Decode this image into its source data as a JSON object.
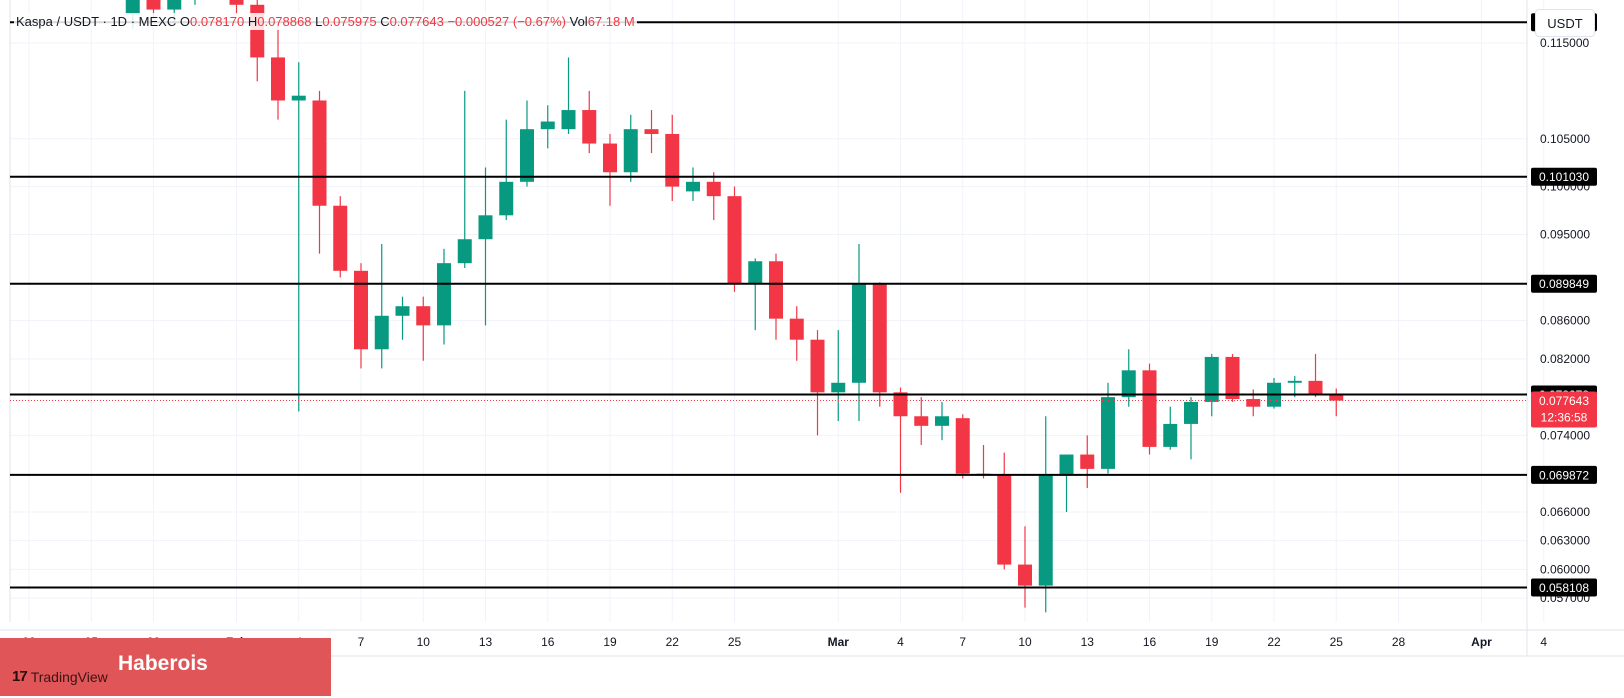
{
  "header": {
    "symbol": "Kaspa / USDT",
    "sep1": "·",
    "interval": "1D",
    "sep2": "·",
    "exchange": "MEXC",
    "o_label": "O",
    "o_value": "0.078170",
    "h_label": "H",
    "h_value": "0.078868",
    "l_label": "L",
    "l_value": "0.075975",
    "c_label": "C",
    "c_value": "0.077643",
    "change": "−0.000527 (−0.67%)",
    "vol_label": "Vol",
    "vol_value": "67.18 M"
  },
  "currency_button": "USDT",
  "branding": {
    "watermark": "Haberois",
    "tradingview": "TradingView"
  },
  "colors": {
    "up": "#089981",
    "down": "#f23645",
    "level_line": "#000000",
    "grid": "#f0f3fa",
    "axis_text": "#131722"
  },
  "chart_data": {
    "type": "candlestick",
    "title": "Kaspa / USDT · 1D · MEXC",
    "ylim": [
      0.0545,
      0.1195
    ],
    "y_ticks": [
      "0.115000",
      "0.105000",
      "0.100000",
      "0.095000",
      "0.086000",
      "0.082000",
      "0.074000",
      "0.066000",
      "0.063000",
      "0.060000",
      "0.057000"
    ],
    "x_ticks": [
      {
        "label": "22",
        "date": "2024-01-22"
      },
      {
        "label": "25",
        "date": "2024-01-25"
      },
      {
        "label": "28",
        "date": "2024-01-28"
      },
      {
        "label": "Feb",
        "date": "2024-02-01"
      },
      {
        "label": "4",
        "date": "2024-02-04"
      },
      {
        "label": "7",
        "date": "2024-02-07"
      },
      {
        "label": "10",
        "date": "2024-02-10"
      },
      {
        "label": "13",
        "date": "2024-02-13"
      },
      {
        "label": "16",
        "date": "2024-02-16"
      },
      {
        "label": "19",
        "date": "2024-02-19"
      },
      {
        "label": "22",
        "date": "2024-02-22"
      },
      {
        "label": "25",
        "date": "2024-02-25"
      },
      {
        "label": "Mar",
        "date": "2024-03-01"
      },
      {
        "label": "4",
        "date": "2024-03-04"
      },
      {
        "label": "7",
        "date": "2024-03-07"
      },
      {
        "label": "10",
        "date": "2024-03-10"
      },
      {
        "label": "13",
        "date": "2024-03-13"
      },
      {
        "label": "16",
        "date": "2024-03-16"
      },
      {
        "label": "19",
        "date": "2024-03-19"
      },
      {
        "label": "22",
        "date": "2024-03-22"
      },
      {
        "label": "25",
        "date": "2024-03-25"
      },
      {
        "label": "28",
        "date": "2024-03-28"
      },
      {
        "label": "Apr",
        "date": "2024-04-01"
      },
      {
        "label": "4",
        "date": "2024-04-04"
      }
    ],
    "levels": [
      {
        "label": "0.117180",
        "value": 0.11718
      },
      {
        "label": "0.101030",
        "value": 0.10103
      },
      {
        "label": "0.089849",
        "value": 0.089849
      },
      {
        "label": "0.078278",
        "value": 0.078278
      },
      {
        "label": "0.069872",
        "value": 0.069872
      },
      {
        "label": "0.058108",
        "value": 0.058108
      }
    ],
    "last_price": {
      "label": "0.077643",
      "value": 0.077643,
      "countdown": "12:36:58"
    },
    "candles": [
      {
        "date": "2024-01-27",
        "o": 0.118,
        "h": 0.122,
        "l": 0.1165,
        "c": 0.1195
      },
      {
        "date": "2024-01-28",
        "o": 0.121,
        "h": 0.123,
        "l": 0.1175,
        "c": 0.1185
      },
      {
        "date": "2024-01-29",
        "o": 0.1185,
        "h": 0.121,
        "l": 0.117,
        "c": 0.1195
      },
      {
        "date": "2024-01-30",
        "o": 0.1195,
        "h": 0.124,
        "l": 0.119,
        "c": 0.123
      },
      {
        "date": "2024-02-01",
        "o": 0.123,
        "h": 0.125,
        "l": 0.118,
        "c": 0.119
      },
      {
        "date": "2024-02-02",
        "o": 0.119,
        "h": 0.1225,
        "l": 0.111,
        "c": 0.1135
      },
      {
        "date": "2024-02-03",
        "o": 0.1135,
        "h": 0.117,
        "l": 0.107,
        "c": 0.109
      },
      {
        "date": "2024-02-04",
        "o": 0.109,
        "h": 0.113,
        "l": 0.0765,
        "c": 0.1095
      },
      {
        "date": "2024-02-05",
        "o": 0.109,
        "h": 0.11,
        "l": 0.093,
        "c": 0.098
      },
      {
        "date": "2024-02-06",
        "o": 0.098,
        "h": 0.099,
        "l": 0.0905,
        "c": 0.0912
      },
      {
        "date": "2024-02-07",
        "o": 0.0912,
        "h": 0.092,
        "l": 0.081,
        "c": 0.083
      },
      {
        "date": "2024-02-08",
        "o": 0.083,
        "h": 0.094,
        "l": 0.081,
        "c": 0.0865
      },
      {
        "date": "2024-02-09",
        "o": 0.0865,
        "h": 0.0885,
        "l": 0.084,
        "c": 0.0875
      },
      {
        "date": "2024-02-10",
        "o": 0.0875,
        "h": 0.0885,
        "l": 0.0818,
        "c": 0.0855
      },
      {
        "date": "2024-02-11",
        "o": 0.0855,
        "h": 0.0935,
        "l": 0.0835,
        "c": 0.092
      },
      {
        "date": "2024-02-12",
        "o": 0.092,
        "h": 0.11,
        "l": 0.0915,
        "c": 0.0945
      },
      {
        "date": "2024-02-13",
        "o": 0.0945,
        "h": 0.102,
        "l": 0.0855,
        "c": 0.097
      },
      {
        "date": "2024-02-14",
        "o": 0.097,
        "h": 0.107,
        "l": 0.0965,
        "c": 0.1005
      },
      {
        "date": "2024-02-15",
        "o": 0.1005,
        "h": 0.109,
        "l": 0.1,
        "c": 0.106
      },
      {
        "date": "2024-02-16",
        "o": 0.106,
        "h": 0.1085,
        "l": 0.104,
        "c": 0.1068
      },
      {
        "date": "2024-02-17",
        "o": 0.106,
        "h": 0.1135,
        "l": 0.1055,
        "c": 0.108
      },
      {
        "date": "2024-02-18",
        "o": 0.108,
        "h": 0.11,
        "l": 0.1035,
        "c": 0.1045
      },
      {
        "date": "2024-02-19",
        "o": 0.1045,
        "h": 0.1055,
        "l": 0.098,
        "c": 0.1015
      },
      {
        "date": "2024-02-20",
        "o": 0.1015,
        "h": 0.1075,
        "l": 0.1005,
        "c": 0.106
      },
      {
        "date": "2024-02-21",
        "o": 0.106,
        "h": 0.108,
        "l": 0.1035,
        "c": 0.1055
      },
      {
        "date": "2024-02-22",
        "o": 0.1055,
        "h": 0.1075,
        "l": 0.0985,
        "c": 0.1
      },
      {
        "date": "2024-02-23",
        "o": 0.0995,
        "h": 0.102,
        "l": 0.0985,
        "c": 0.1005
      },
      {
        "date": "2024-02-24",
        "o": 0.1005,
        "h": 0.1015,
        "l": 0.0965,
        "c": 0.099
      },
      {
        "date": "2024-02-25",
        "o": 0.099,
        "h": 0.1,
        "l": 0.089,
        "c": 0.0898
      },
      {
        "date": "2024-02-26",
        "o": 0.0898,
        "h": 0.0925,
        "l": 0.085,
        "c": 0.0922
      },
      {
        "date": "2024-02-27",
        "o": 0.0922,
        "h": 0.093,
        "l": 0.084,
        "c": 0.0862
      },
      {
        "date": "2024-02-28",
        "o": 0.0862,
        "h": 0.0875,
        "l": 0.0818,
        "c": 0.084
      },
      {
        "date": "2024-02-29",
        "o": 0.084,
        "h": 0.085,
        "l": 0.074,
        "c": 0.0785
      },
      {
        "date": "2024-03-01",
        "o": 0.0785,
        "h": 0.085,
        "l": 0.0755,
        "c": 0.0795
      },
      {
        "date": "2024-03-02",
        "o": 0.0795,
        "h": 0.094,
        "l": 0.0755,
        "c": 0.0898
      },
      {
        "date": "2024-03-03",
        "o": 0.0898,
        "h": 0.09,
        "l": 0.077,
        "c": 0.0785
      },
      {
        "date": "2024-03-04",
        "o": 0.0785,
        "h": 0.079,
        "l": 0.068,
        "c": 0.076
      },
      {
        "date": "2024-03-05",
        "o": 0.076,
        "h": 0.078,
        "l": 0.073,
        "c": 0.075
      },
      {
        "date": "2024-03-06",
        "o": 0.075,
        "h": 0.0775,
        "l": 0.0735,
        "c": 0.076
      },
      {
        "date": "2024-03-07",
        "o": 0.0758,
        "h": 0.0762,
        "l": 0.0695,
        "c": 0.07
      },
      {
        "date": "2024-03-08",
        "o": 0.07,
        "h": 0.073,
        "l": 0.0695,
        "c": 0.0698
      },
      {
        "date": "2024-03-09",
        "o": 0.0698,
        "h": 0.0722,
        "l": 0.06,
        "c": 0.0605
      },
      {
        "date": "2024-03-10",
        "o": 0.0605,
        "h": 0.0645,
        "l": 0.056,
        "c": 0.0583
      },
      {
        "date": "2024-03-11",
        "o": 0.0583,
        "h": 0.076,
        "l": 0.0555,
        "c": 0.0698
      },
      {
        "date": "2024-03-12",
        "o": 0.0698,
        "h": 0.072,
        "l": 0.066,
        "c": 0.072
      },
      {
        "date": "2024-03-13",
        "o": 0.072,
        "h": 0.074,
        "l": 0.0685,
        "c": 0.0705
      },
      {
        "date": "2024-03-14",
        "o": 0.0705,
        "h": 0.0795,
        "l": 0.07,
        "c": 0.078
      },
      {
        "date": "2024-03-15",
        "o": 0.078,
        "h": 0.083,
        "l": 0.077,
        "c": 0.0808
      },
      {
        "date": "2024-03-16",
        "o": 0.0808,
        "h": 0.0815,
        "l": 0.072,
        "c": 0.0728
      },
      {
        "date": "2024-03-17",
        "o": 0.0728,
        "h": 0.077,
        "l": 0.0725,
        "c": 0.0752
      },
      {
        "date": "2024-03-18",
        "o": 0.0752,
        "h": 0.078,
        "l": 0.0715,
        "c": 0.0775
      },
      {
        "date": "2024-03-19",
        "o": 0.0775,
        "h": 0.0825,
        "l": 0.076,
        "c": 0.0822
      },
      {
        "date": "2024-03-20",
        "o": 0.0822,
        "h": 0.0825,
        "l": 0.0775,
        "c": 0.0778
      },
      {
        "date": "2024-03-21",
        "o": 0.0778,
        "h": 0.0788,
        "l": 0.076,
        "c": 0.077
      },
      {
        "date": "2024-03-22",
        "o": 0.077,
        "h": 0.08,
        "l": 0.0768,
        "c": 0.0795
      },
      {
        "date": "2024-03-23",
        "o": 0.0795,
        "h": 0.0802,
        "l": 0.078,
        "c": 0.0797
      },
      {
        "date": "2024-03-24",
        "o": 0.0797,
        "h": 0.0825,
        "l": 0.078,
        "c": 0.0783
      },
      {
        "date": "2024-03-25",
        "o": 0.0782,
        "h": 0.0789,
        "l": 0.076,
        "c": 0.07764
      }
    ]
  }
}
